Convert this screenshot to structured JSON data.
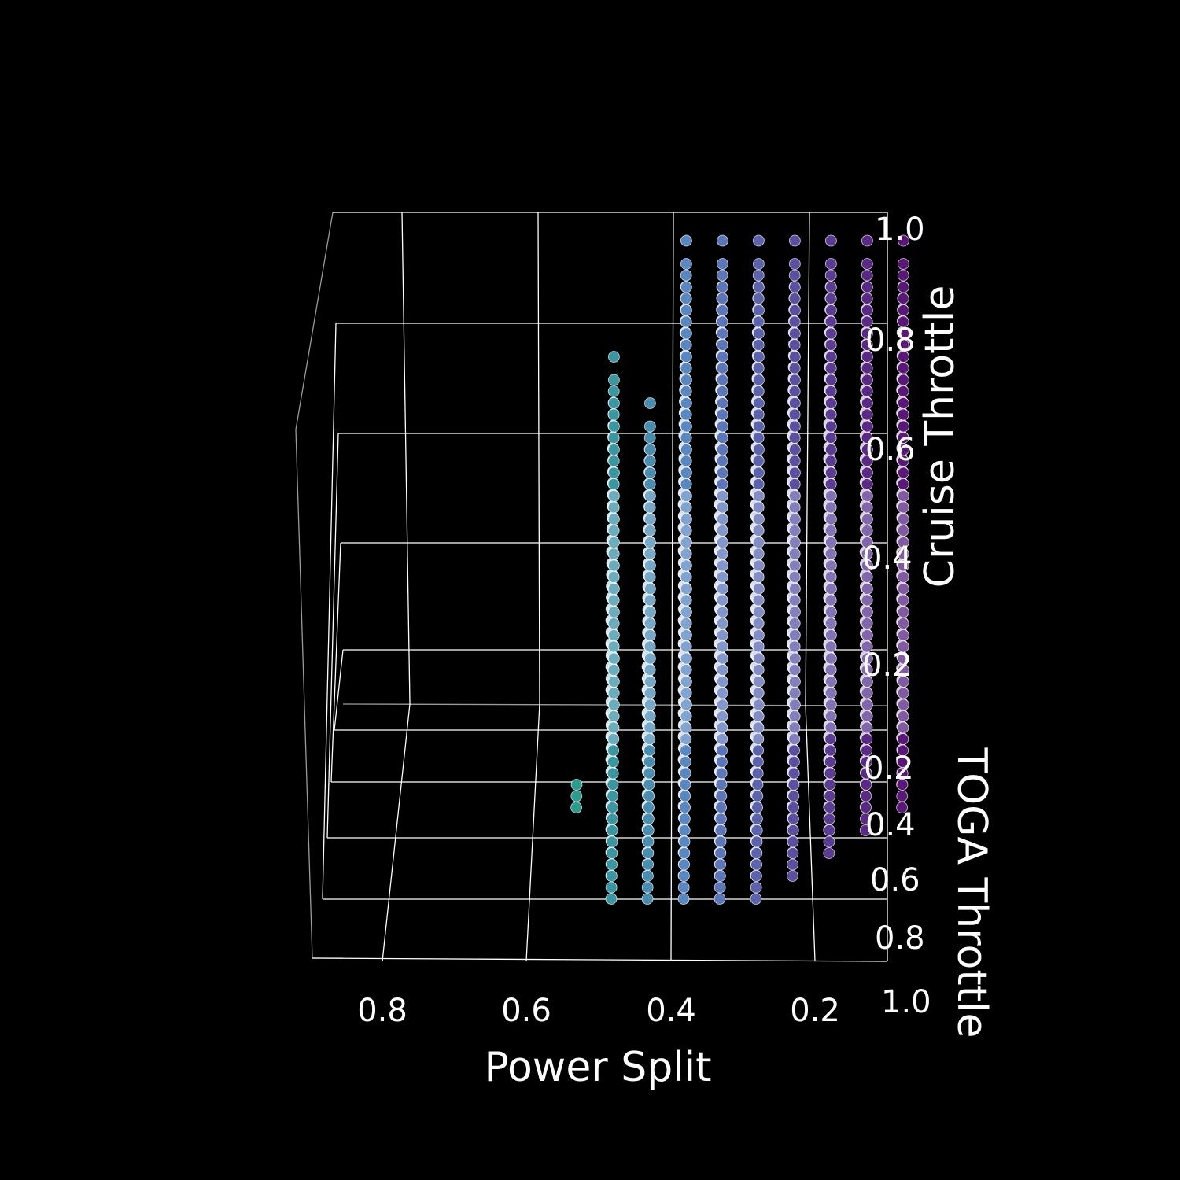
{
  "chart_data": {
    "type": "scatter",
    "projection": "3d",
    "background": "#000000",
    "title": "",
    "xlabel": "Power Split",
    "ylabel": "TOGA Throttle",
    "zlabel": "Cruise Throttle",
    "x_ticks": [
      "0.8",
      "0.6",
      "0.4",
      "0.2"
    ],
    "y_ticks": [
      "0.2",
      "0.4",
      "0.6",
      "0.8",
      "1.0"
    ],
    "z_ticks": [
      "0.2",
      "0.4",
      "0.6",
      "0.8",
      "1.0"
    ],
    "xlim": [
      0.05,
      0.95
    ],
    "ylim": [
      0.0,
      1.0
    ],
    "zlim": [
      0.0,
      1.0
    ],
    "grid": true,
    "colormap": "viridis-to-purple",
    "colors": {
      "low": "#2a9d8f",
      "mid": "#5b86c4",
      "light": "#c9d8f2",
      "high": "#5a1678",
      "edge": "#ffffff"
    },
    "series": [
      {
        "power_split": 0.55,
        "toga_min": 0.35,
        "toga_max": 0.45,
        "cruise_min": 0.0,
        "cruise_max": 0.0
      },
      {
        "power_split": 0.5,
        "toga_min": 0.0,
        "toga_max": 0.85,
        "cruise_min": 0.0,
        "cruise_max": 0.75
      },
      {
        "power_split": 0.45,
        "toga_min": 0.0,
        "toga_max": 0.85,
        "cruise_min": 0.0,
        "cruise_max": 0.65
      },
      {
        "power_split": 0.4,
        "toga_min": 0.0,
        "toga_max": 0.85,
        "cruise_min": 0.0,
        "cruise_max": 1.0
      },
      {
        "power_split": 0.35,
        "toga_min": 0.0,
        "toga_max": 0.85,
        "cruise_min": 0.0,
        "cruise_max": 1.0
      },
      {
        "power_split": 0.3,
        "toga_min": 0.0,
        "toga_max": 0.85,
        "cruise_min": 0.0,
        "cruise_max": 1.0
      },
      {
        "power_split": 0.25,
        "toga_min": 0.0,
        "toga_max": 0.75,
        "cruise_min": 0.0,
        "cruise_max": 1.0
      },
      {
        "power_split": 0.2,
        "toga_min": 0.0,
        "toga_max": 0.65,
        "cruise_min": 0.0,
        "cruise_max": 1.0
      },
      {
        "power_split": 0.15,
        "toga_min": 0.0,
        "toga_max": 0.55,
        "cruise_min": 0.0,
        "cruise_max": 1.0
      },
      {
        "power_split": 0.1,
        "toga_min": 0.0,
        "toga_max": 0.45,
        "cruise_min": 0.0,
        "cruise_max": 1.0
      }
    ]
  }
}
